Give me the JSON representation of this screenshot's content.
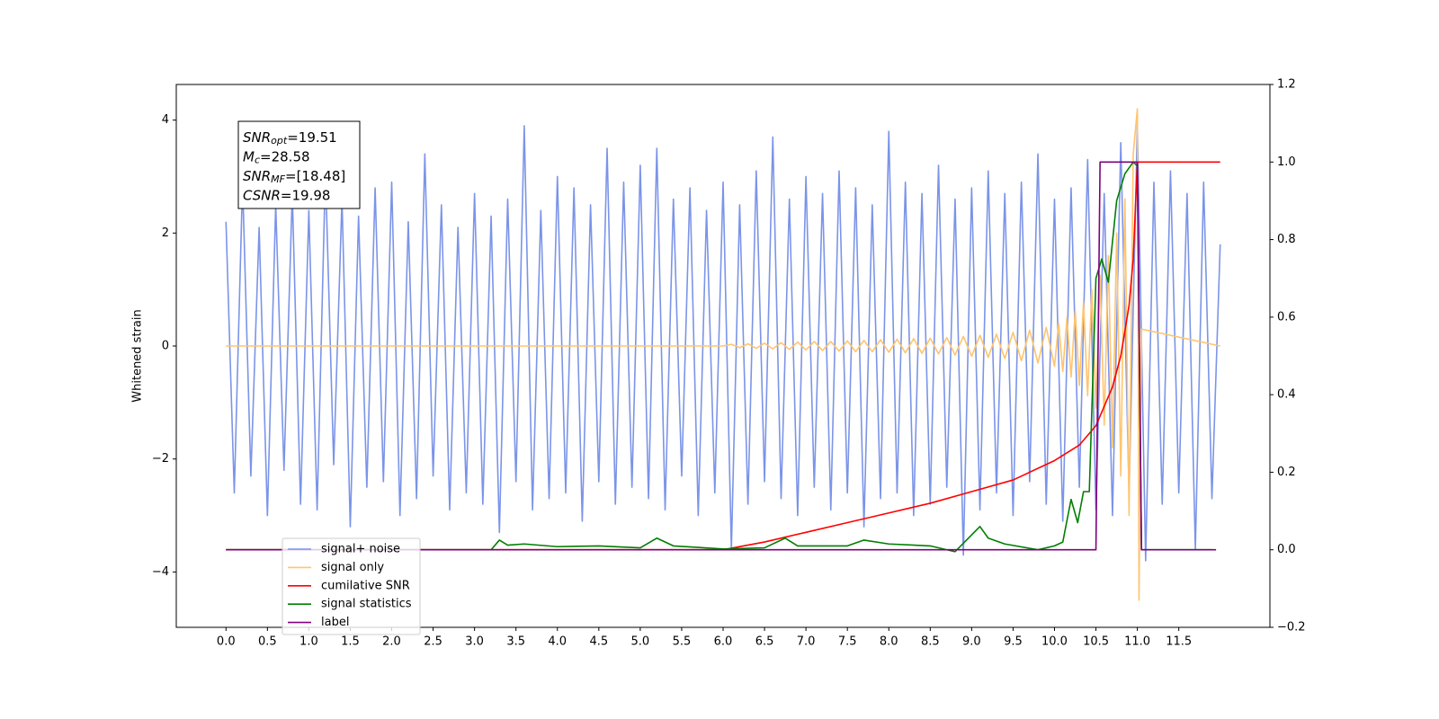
{
  "chart_data": {
    "type": "line",
    "y_label": "Whitened strain",
    "xlim": [
      -0.6,
      12.6
    ],
    "ylim": [
      -4.98,
      4.63
    ],
    "y2lim": [
      -0.2,
      1.2
    ],
    "xticks": [
      {
        "value": 0,
        "label": "0.0"
      },
      0.5,
      {
        "value": 1,
        "label": "1.0"
      },
      1.5,
      {
        "value": 2,
        "label": "2.0"
      },
      2.5,
      {
        "value": 3,
        "label": "3.0"
      },
      3.5,
      {
        "value": 4,
        "label": "4.0"
      },
      4.5,
      {
        "value": 5,
        "label": "5.0"
      },
      5.5,
      {
        "value": 6,
        "label": "6.0"
      },
      6.5,
      {
        "value": 7,
        "label": "7.0"
      },
      7.5,
      {
        "value": 8,
        "label": "8.0"
      },
      8.5,
      {
        "value": 9,
        "label": "9.0"
      },
      9.5,
      {
        "value": 10,
        "label": "10.0"
      },
      10.5,
      {
        "value": 11,
        "label": "11.0"
      },
      11.5
    ],
    "yticks": [
      {
        "value": -4,
        "label": "−4"
      },
      {
        "value": -2,
        "label": "−2"
      },
      0,
      2,
      4
    ],
    "y2ticks": [
      {
        "value": -0.2,
        "label": "−0.2"
      },
      {
        "value": 0,
        "label": "0.0"
      },
      0.2,
      0.4,
      0.6,
      0.8,
      {
        "value": 1,
        "label": "1.0"
      },
      1.2
    ],
    "annotation": [
      {
        "symbol": "SNR",
        "subscript": "opt",
        "text": "=19.51"
      },
      {
        "symbol": "M",
        "subscript": "c",
        "text": "=28.58"
      },
      {
        "symbol": "SNR",
        "subscript": "MF",
        "text": "=[18.48]"
      },
      {
        "symbol": "CSNR",
        "text": "=19.98"
      }
    ],
    "series": [
      {
        "name": "signal+ noise",
        "color": "#7b94e8",
        "x": [
          0,
          0.1,
          0.2,
          0.3,
          0.4,
          0.5,
          0.6,
          0.7,
          0.8,
          0.9,
          1,
          1.1,
          1.2,
          1.3,
          1.4,
          1.5,
          1.6,
          1.7,
          1.8,
          1.9,
          2,
          2.1,
          2.2,
          2.3,
          2.4,
          2.5,
          2.6,
          2.7,
          2.8,
          2.9,
          3,
          3.1,
          3.2,
          3.3,
          3.4,
          3.5,
          3.6,
          3.7,
          3.8,
          3.9,
          4,
          4.1,
          4.2,
          4.3,
          4.4,
          4.5,
          4.6,
          4.7,
          4.8,
          4.9,
          5,
          5.1,
          5.2,
          5.3,
          5.4,
          5.5,
          5.6,
          5.7,
          5.8,
          5.9,
          6,
          6.1,
          6.2,
          6.3,
          6.4,
          6.5,
          6.6,
          6.7,
          6.8,
          6.9,
          7,
          7.1,
          7.2,
          7.3,
          7.4,
          7.5,
          7.6,
          7.7,
          7.8,
          7.9,
          8,
          8.1,
          8.2,
          8.3,
          8.4,
          8.5,
          8.6,
          8.7,
          8.8,
          8.9,
          9,
          9.1,
          9.2,
          9.3,
          9.4,
          9.5,
          9.6,
          9.7,
          9.8,
          9.9,
          10,
          10.1,
          10.2,
          10.3,
          10.4,
          10.5,
          10.6,
          10.7,
          10.8,
          10.9,
          11,
          11.1,
          11.2,
          11.3,
          11.4,
          11.5,
          11.6,
          11.7,
          11.8,
          11.9,
          12
        ],
        "values": [
          2.2,
          -2.6,
          2.9,
          -2.3,
          2.1,
          -3.0,
          2.5,
          -2.2,
          2.7,
          -2.8,
          2.4,
          -2.9,
          3.1,
          -2.1,
          2.6,
          -3.2,
          2.3,
          -2.5,
          2.8,
          -2.4,
          2.9,
          -3.0,
          2.2,
          -2.7,
          3.4,
          -2.3,
          2.5,
          -2.9,
          2.1,
          -2.6,
          2.7,
          -2.8,
          2.3,
          -3.3,
          2.6,
          -2.4,
          3.9,
          -2.9,
          2.4,
          -2.7,
          3.0,
          -2.6,
          2.8,
          -3.1,
          2.5,
          -2.4,
          3.5,
          -2.8,
          2.9,
          -2.5,
          3.2,
          -2.7,
          3.5,
          -2.9,
          2.6,
          -2.3,
          2.8,
          -3.0,
          2.4,
          -2.6,
          2.9,
          -3.6,
          2.5,
          -2.8,
          3.1,
          -2.4,
          3.7,
          -2.7,
          2.6,
          -3.0,
          3.0,
          -2.5,
          2.7,
          -2.9,
          3.1,
          -2.6,
          2.8,
          -3.2,
          2.5,
          -2.7,
          3.8,
          -2.6,
          2.9,
          -3.0,
          2.7,
          -2.8,
          3.2,
          -2.5,
          2.6,
          -3.7,
          2.8,
          -2.9,
          3.1,
          -2.6,
          2.7,
          -3.0,
          2.9,
          -2.4,
          3.4,
          -2.8,
          2.6,
          -3.1,
          2.8,
          -2.5,
          3.3,
          -2.9,
          2.7,
          -3.0,
          3.6,
          -2.6,
          3.9,
          -3.8,
          2.9,
          -2.8,
          3.1,
          -2.6,
          2.7,
          -3.6,
          2.9,
          -2.7,
          1.8
        ]
      },
      {
        "name": "signal only",
        "color": "#ffc46e",
        "x": [
          0,
          6,
          6.1,
          6.2,
          6.3,
          6.4,
          6.5,
          6.6,
          6.7,
          6.8,
          6.9,
          7,
          7.1,
          7.2,
          7.3,
          7.4,
          7.5,
          7.6,
          7.7,
          7.8,
          7.9,
          8,
          8.1,
          8.2,
          8.3,
          8.4,
          8.5,
          8.6,
          8.7,
          8.8,
          8.9,
          9,
          9.1,
          9.2,
          9.3,
          9.4,
          9.5,
          9.6,
          9.7,
          9.8,
          9.9,
          10,
          10.05,
          10.1,
          10.15,
          10.2,
          10.25,
          10.3,
          10.35,
          10.4,
          10.45,
          10.5,
          10.55,
          10.6,
          10.65,
          10.7,
          10.75,
          10.8,
          10.85,
          10.9,
          10.95,
          11,
          11.02,
          11.05,
          12
        ],
        "values": [
          0,
          0,
          0.03,
          -0.03,
          0.04,
          -0.04,
          0.05,
          -0.05,
          0.06,
          -0.06,
          0.07,
          -0.07,
          0.08,
          -0.08,
          0.08,
          -0.09,
          0.09,
          -0.1,
          0.1,
          -0.1,
          0.11,
          -0.11,
          0.12,
          -0.12,
          0.13,
          -0.13,
          0.14,
          -0.14,
          0.15,
          -0.16,
          0.17,
          -0.18,
          0.19,
          -0.2,
          0.21,
          -0.22,
          0.24,
          -0.26,
          0.28,
          -0.3,
          0.33,
          -0.36,
          0.4,
          -0.45,
          0.5,
          -0.55,
          0.62,
          -0.7,
          0.78,
          -0.88,
          1.0,
          -1.1,
          1.25,
          -1.4,
          1.6,
          -1.8,
          2.0,
          -2.3,
          2.6,
          -3.0,
          3.4,
          4.2,
          -4.5,
          0.3,
          0
        ]
      },
      {
        "name": "cumilative SNR",
        "color": "#ff0000",
        "axis": "y2",
        "x": [
          0,
          6,
          6.5,
          7,
          7.5,
          8,
          8.5,
          9,
          9.5,
          10,
          10.3,
          10.5,
          10.7,
          10.8,
          10.9,
          10.95,
          11,
          12
        ],
        "values": [
          0,
          0,
          0.02,
          0.045,
          0.07,
          0.095,
          0.12,
          0.15,
          0.18,
          0.23,
          0.27,
          0.32,
          0.42,
          0.5,
          0.63,
          0.75,
          1.0,
          1.0
        ]
      },
      {
        "name": "signal statistics",
        "color": "#007f00",
        "axis": "y2",
        "x": [
          0,
          3.2,
          3.3,
          3.4,
          3.6,
          4,
          4.5,
          5,
          5.2,
          5.4,
          6,
          6.5,
          6.75,
          6.9,
          7.5,
          7.7,
          8,
          8.5,
          8.8,
          9.1,
          9.2,
          9.4,
          9.8,
          10,
          10.1,
          10.2,
          10.28,
          10.35,
          10.42,
          10.5,
          10.57,
          10.65,
          10.75,
          10.85,
          10.95,
          11,
          11.05,
          11.9
        ],
        "values": [
          0,
          0,
          0.025,
          0.012,
          0.015,
          0.008,
          0.01,
          0.005,
          0.03,
          0.01,
          0.002,
          0.005,
          0.03,
          0.01,
          0.01,
          0.025,
          0.015,
          0.01,
          -0.005,
          0.06,
          0.03,
          0.015,
          0,
          0.01,
          0.02,
          0.13,
          0.07,
          0.15,
          0.15,
          0.7,
          0.75,
          0.69,
          0.9,
          0.97,
          1.0,
          0.99,
          0,
          0
        ]
      },
      {
        "name": "label",
        "color": "#7f007f",
        "axis": "y2",
        "x": [
          0,
          10.5,
          10.55,
          11,
          11.05,
          11.95
        ],
        "values": [
          0,
          0,
          1,
          1,
          0,
          0
        ]
      }
    ]
  }
}
